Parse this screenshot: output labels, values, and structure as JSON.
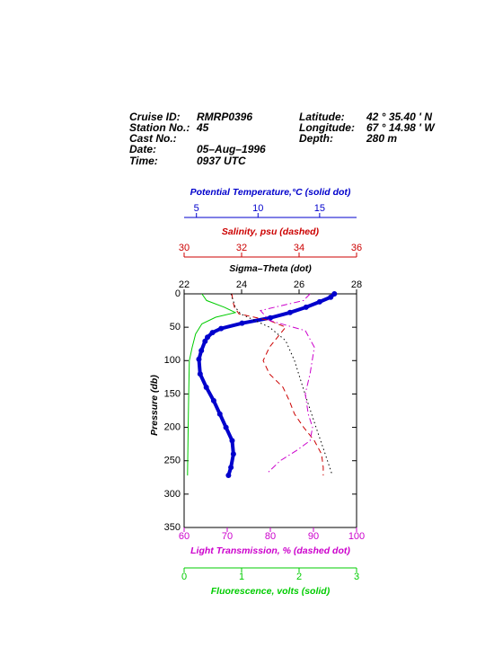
{
  "header": {
    "left": [
      {
        "label": "Cruise ID:",
        "value": "RMRP0396"
      },
      {
        "label": "Station No.:",
        "value": "45"
      },
      {
        "label": "Cast No.:"
      },
      {
        "label": "Date:",
        "value": "05–Aug–1996"
      },
      {
        "label": "Time:",
        "value": "0937 UTC"
      }
    ],
    "right": [
      {
        "label": "Latitude:",
        "value": "42 ° 35.40 ' N"
      },
      {
        "label": "Longitude:",
        "value": "67 ° 14.98 ' W"
      },
      {
        "label": "Depth:",
        "value": "280 m"
      }
    ]
  },
  "chart_data": {
    "type": "line",
    "ylabel": "Pressure (db)",
    "ylim": [
      0,
      350
    ],
    "y_reversed": true,
    "yticks": [
      0,
      50,
      100,
      150,
      200,
      250,
      300,
      350
    ],
    "series": [
      {
        "name": "Potential Temperature,°C (solid dot)",
        "color": "#0000cc",
        "style": "solid-dot",
        "side": "top",
        "xlim": [
          4,
          18
        ],
        "xticks": [
          5,
          10,
          15
        ],
        "pressure": [
          0,
          5,
          12,
          20,
          28,
          36,
          44,
          52,
          58,
          65,
          71,
          85,
          98,
          120,
          140,
          160,
          180,
          200,
          220,
          240,
          260,
          272
        ],
        "values": [
          16.2,
          15.9,
          15.0,
          13.9,
          12.6,
          11.0,
          8.7,
          7.0,
          6.3,
          5.9,
          5.7,
          5.4,
          5.2,
          5.3,
          5.8,
          6.4,
          6.9,
          7.4,
          7.9,
          8.0,
          7.8,
          7.6
        ]
      },
      {
        "name": "Salinity, psu  (dashed)",
        "color": "#cc0000",
        "style": "dashed",
        "side": "top",
        "xlim": [
          30,
          36
        ],
        "xticks": [
          30,
          32,
          34,
          36
        ],
        "pressure": [
          0,
          10,
          20,
          30,
          40,
          50,
          60,
          80,
          100,
          120,
          140,
          160,
          180,
          200,
          220,
          240,
          260,
          272
        ],
        "values": [
          31.66,
          31.69,
          31.75,
          31.91,
          32.97,
          33.53,
          33.34,
          32.97,
          32.75,
          32.97,
          33.44,
          33.66,
          33.84,
          34.16,
          34.53,
          34.78,
          34.84,
          34.84
        ]
      },
      {
        "name": "Sigma–Theta (dot)",
        "color": "#000000",
        "style": "dotted",
        "side": "top",
        "xlim": [
          22,
          28
        ],
        "xticks": [
          22,
          24,
          26,
          28
        ],
        "pressure": [
          0,
          20,
          30,
          50,
          70,
          100,
          130,
          160,
          200,
          240,
          272
        ],
        "values": [
          23.63,
          23.78,
          23.97,
          24.97,
          25.53,
          25.84,
          26.06,
          26.28,
          26.59,
          26.91,
          27.16
        ]
      },
      {
        "name": "Light Transmission, % (dashed dot)",
        "color": "#cc00cc",
        "style": "dash-dot",
        "side": "bottom",
        "xlim": [
          60,
          100
        ],
        "xticks": [
          60,
          70,
          80,
          90,
          100
        ],
        "pressure": [
          0,
          10,
          25,
          40,
          55,
          80,
          120,
          150,
          180,
          200,
          220,
          235,
          250,
          268
        ],
        "values": [
          89.2,
          87.7,
          77.7,
          79.8,
          88.1,
          90.2,
          89.2,
          88.1,
          88.8,
          89.8,
          89.2,
          86.0,
          82.3,
          79.4
        ]
      },
      {
        "name": "Fluorescence, volts (solid)",
        "color": "#00cc00",
        "style": "solid",
        "side": "bottom",
        "xlim": [
          0,
          3
        ],
        "xticks": [
          0,
          1,
          2,
          3
        ],
        "pressure": [
          0,
          10,
          20,
          28,
          35,
          45,
          60,
          80,
          100,
          150,
          200,
          272
        ],
        "values": [
          0.31,
          0.39,
          0.7,
          0.89,
          0.55,
          0.31,
          0.2,
          0.14,
          0.09,
          0.08,
          0.07,
          0.06
        ]
      }
    ]
  }
}
